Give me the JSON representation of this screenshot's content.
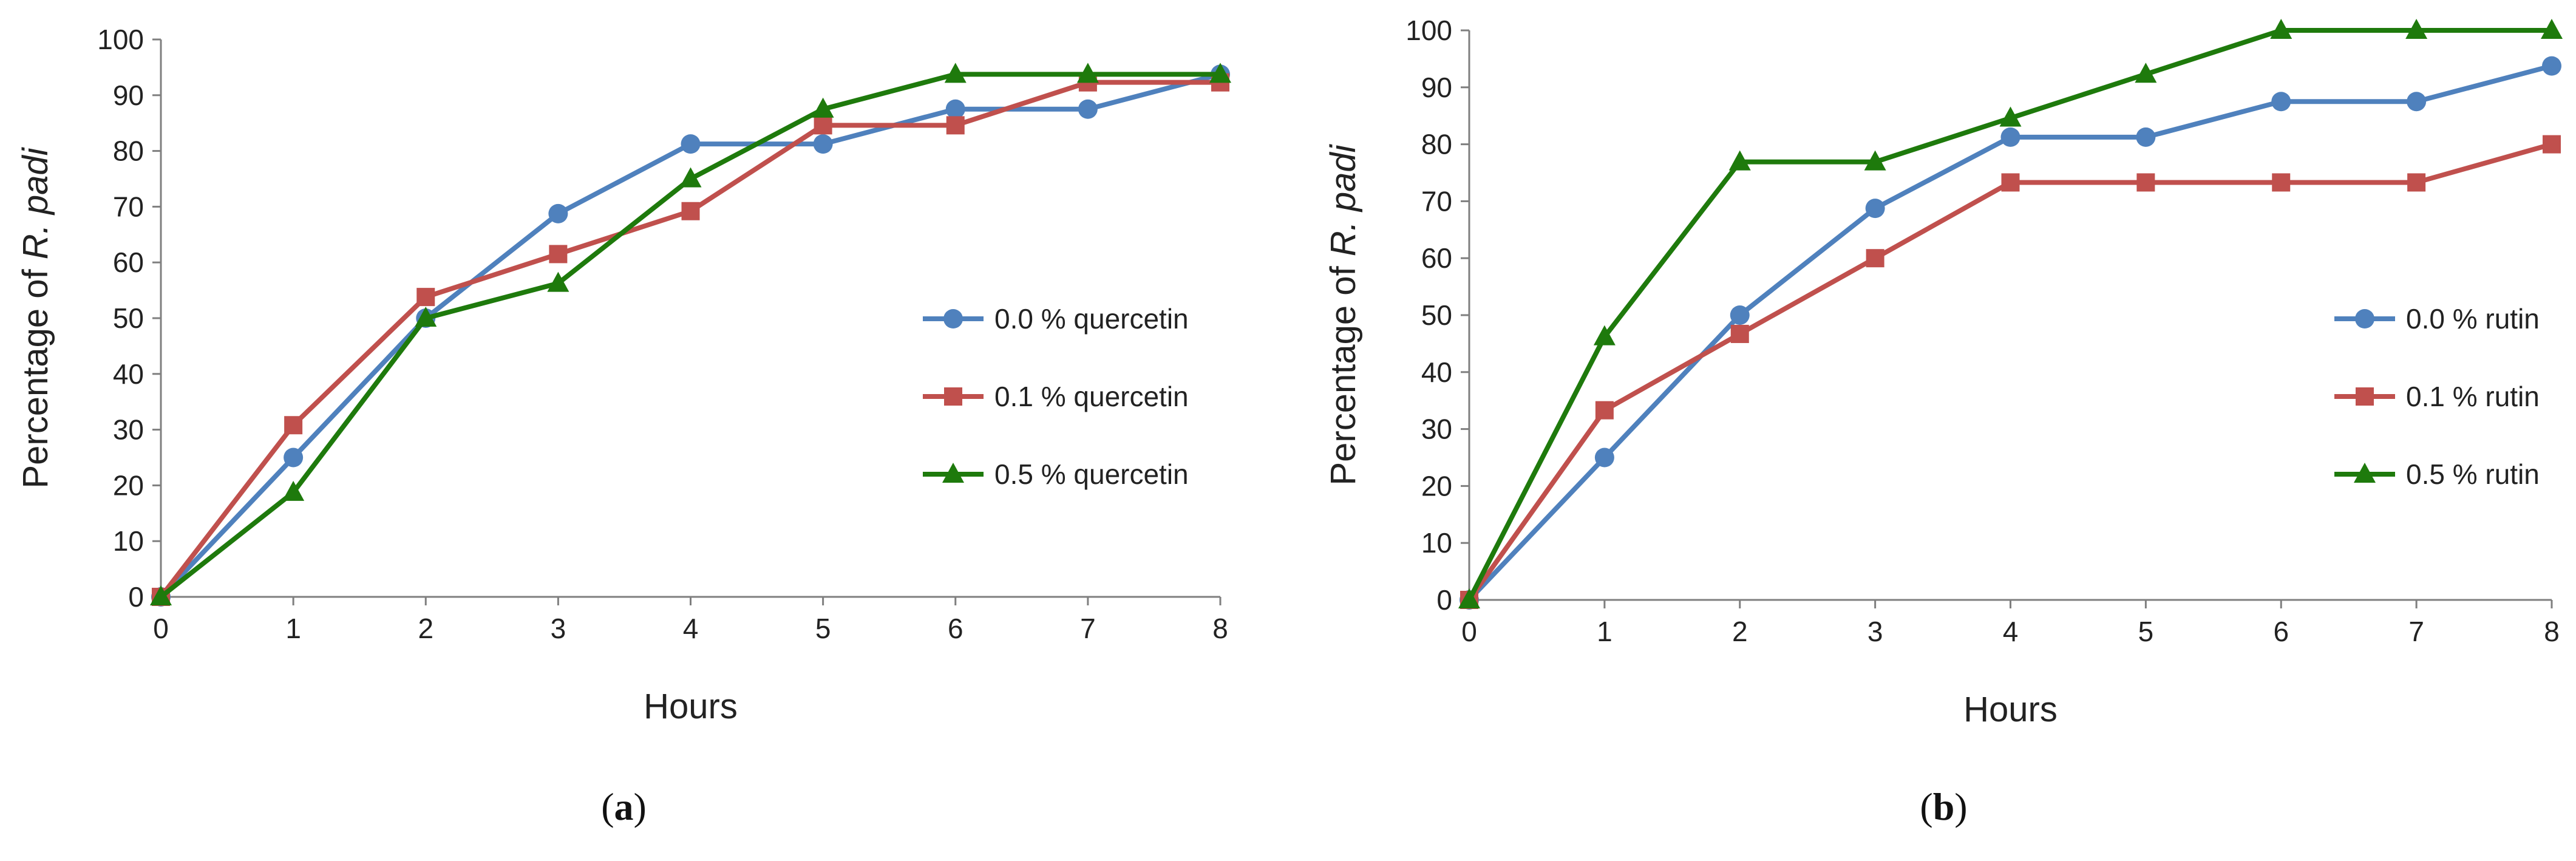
{
  "chart_data": [
    {
      "type": "line",
      "panel_label": "a",
      "xlabel": "Hours",
      "ylabel_prefix": "Percentage of ",
      "ylabel_italic": "R. padi",
      "x": [
        0,
        1,
        2,
        3,
        4,
        5,
        6,
        7,
        8
      ],
      "xlim": [
        0,
        8
      ],
      "ylim": [
        0,
        100
      ],
      "yticks": [
        0,
        10,
        20,
        30,
        40,
        50,
        60,
        70,
        80,
        90,
        100
      ],
      "grid": false,
      "legend_position": "center-right",
      "series": [
        {
          "name": "0.0 % quercetin",
          "color": "#4f81bd",
          "marker": "circle",
          "values": [
            0,
            25,
            50,
            68.75,
            81.25,
            81.25,
            87.5,
            87.5,
            93.75
          ]
        },
        {
          "name": "0.1 % quercetin",
          "color": "#c0504d",
          "marker": "square",
          "values": [
            0,
            30.8,
            53.8,
            61.5,
            69.2,
            84.6,
            84.6,
            92.3,
            92.3
          ]
        },
        {
          "name": "0.5 % quercetin",
          "color": "#1e7a0c",
          "marker": "triangle",
          "values": [
            0,
            18.75,
            50,
            56.25,
            75,
            87.5,
            93.75,
            93.75,
            93.75
          ]
        }
      ]
    },
    {
      "type": "line",
      "panel_label": "b",
      "xlabel": "Hours",
      "ylabel_prefix": "Percentage of ",
      "ylabel_italic": "R. padi",
      "x": [
        0,
        1,
        2,
        3,
        4,
        5,
        6,
        7,
        8
      ],
      "xlim": [
        0,
        8
      ],
      "ylim": [
        0,
        100
      ],
      "yticks": [
        0,
        10,
        20,
        30,
        40,
        50,
        60,
        70,
        80,
        90,
        100
      ],
      "grid": false,
      "legend_position": "center-right",
      "series": [
        {
          "name": "0.0 % rutin",
          "color": "#4f81bd",
          "marker": "circle",
          "values": [
            0,
            25,
            50,
            68.75,
            81.25,
            81.25,
            87.5,
            87.5,
            93.75
          ]
        },
        {
          "name": "0.1 % rutin",
          "color": "#c0504d",
          "marker": "square",
          "values": [
            0,
            33.3,
            46.7,
            60,
            73.3,
            73.3,
            73.3,
            73.3,
            80
          ]
        },
        {
          "name": "0.5 % rutin",
          "color": "#1e7a0c",
          "marker": "triangle",
          "values": [
            0,
            46.2,
            76.9,
            76.9,
            84.6,
            92.3,
            100,
            100,
            100
          ]
        }
      ]
    }
  ]
}
